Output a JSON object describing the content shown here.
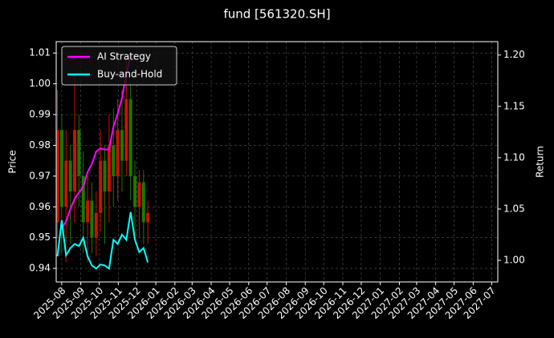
{
  "chart_data": {
    "type": "candlestick-lines",
    "title": "fund [561320.SH]",
    "ylabel": "Price",
    "y2label": "Return",
    "x": [
      "2025-07-25",
      "2025-08-01",
      "2025-08-08",
      "2025-08-15",
      "2025-08-22",
      "2025-08-29",
      "2025-09-05",
      "2025-09-12",
      "2025-09-19",
      "2025-09-26",
      "2025-10-03",
      "2025-10-10",
      "2025-10-17",
      "2025-10-24",
      "2025-10-31",
      "2025-11-07",
      "2025-11-14",
      "2025-11-21",
      "2025-11-28",
      "2025-12-05",
      "2025-12-12",
      "2025-12-19"
    ],
    "open": [
      0.955,
      0.985,
      0.96,
      0.975,
      0.965,
      0.985,
      0.97,
      0.955,
      0.962,
      0.95,
      0.958,
      0.975,
      0.965,
      0.98,
      0.97,
      0.985,
      0.975,
      0.995,
      0.97,
      0.96,
      0.968,
      0.955
    ],
    "close": [
      0.985,
      0.96,
      0.975,
      0.965,
      0.985,
      0.97,
      0.955,
      0.962,
      0.95,
      0.958,
      0.975,
      0.965,
      0.98,
      0.97,
      0.985,
      0.975,
      0.995,
      0.97,
      0.96,
      0.968,
      0.955,
      0.958
    ],
    "high": [
      0.998,
      0.99,
      0.985,
      0.98,
      1.002,
      0.99,
      0.978,
      0.97,
      0.968,
      0.965,
      0.985,
      0.98,
      0.99,
      0.992,
      0.995,
      0.998,
      1.008,
      1.0,
      0.975,
      0.972,
      0.972,
      0.962
    ],
    "low": [
      0.95,
      0.945,
      0.942,
      0.948,
      0.955,
      0.96,
      0.945,
      0.942,
      0.945,
      0.944,
      0.952,
      0.948,
      0.955,
      0.96,
      0.962,
      0.965,
      0.97,
      0.962,
      0.95,
      0.95,
      0.948,
      0.948
    ],
    "up_color": "#cc1100",
    "down_color": "#1a7a00",
    "series": [
      {
        "name": "AI Strategy",
        "color": "#ff00ff",
        "axis": "y2",
        "values": [
          null,
          1.031,
          1.038,
          1.05,
          1.06,
          1.066,
          1.072,
          1.086,
          1.094,
          1.106,
          1.109,
          1.108,
          1.108,
          1.13,
          1.143,
          1.158,
          1.182,
          1.199,
          null,
          null,
          null,
          null
        ]
      },
      {
        "name": "Buy-and-Hold",
        "color": "#00ffff",
        "axis": "y2",
        "values": [
          1.004,
          1.039,
          1.005,
          1.012,
          1.016,
          1.014,
          1.022,
          1.004,
          0.995,
          0.992,
          0.996,
          0.995,
          0.992,
          1.02,
          1.016,
          1.025,
          1.02,
          1.047,
          1.02,
          1.008,
          1.012,
          0.998
        ]
      }
    ],
    "xlim": [
      "2025-07-23",
      "2027-07-11"
    ],
    "xticks": [
      "2025-08",
      "2025-09",
      "2025-10",
      "2025-11",
      "2025-12",
      "2026-01",
      "2026-02",
      "2026-03",
      "2026-04",
      "2026-05",
      "2026-06",
      "2026-07",
      "2026-08",
      "2026-09",
      "2026-10",
      "2026-11",
      "2026-12",
      "2027-01",
      "2027-02",
      "2027-03",
      "2027-04",
      "2027-05",
      "2027-06",
      "2027-07"
    ],
    "ylim": [
      0.9356,
      1.0137
    ],
    "yticks": [
      {
        "value": 0.94,
        "label": "0.94"
      },
      {
        "value": 0.95,
        "label": "0.95"
      },
      {
        "value": 0.96,
        "label": "0.96"
      },
      {
        "value": 0.97,
        "label": "0.97"
      },
      {
        "value": 0.98,
        "label": "0.98"
      },
      {
        "value": 0.99,
        "label": "0.99"
      },
      {
        "value": 1.0,
        "label": "1.00"
      },
      {
        "value": 1.01,
        "label": "1.01"
      }
    ],
    "y2lim": [
      0.979,
      1.213
    ],
    "y2ticks": [
      {
        "value": 1.0,
        "label": "1.00"
      },
      {
        "value": 1.05,
        "label": "1.05"
      },
      {
        "value": 1.1,
        "label": "1.10"
      },
      {
        "value": 1.15,
        "label": "1.15"
      },
      {
        "value": 1.2,
        "label": "1.20"
      }
    ],
    "grid": true,
    "legend": "upper left"
  }
}
